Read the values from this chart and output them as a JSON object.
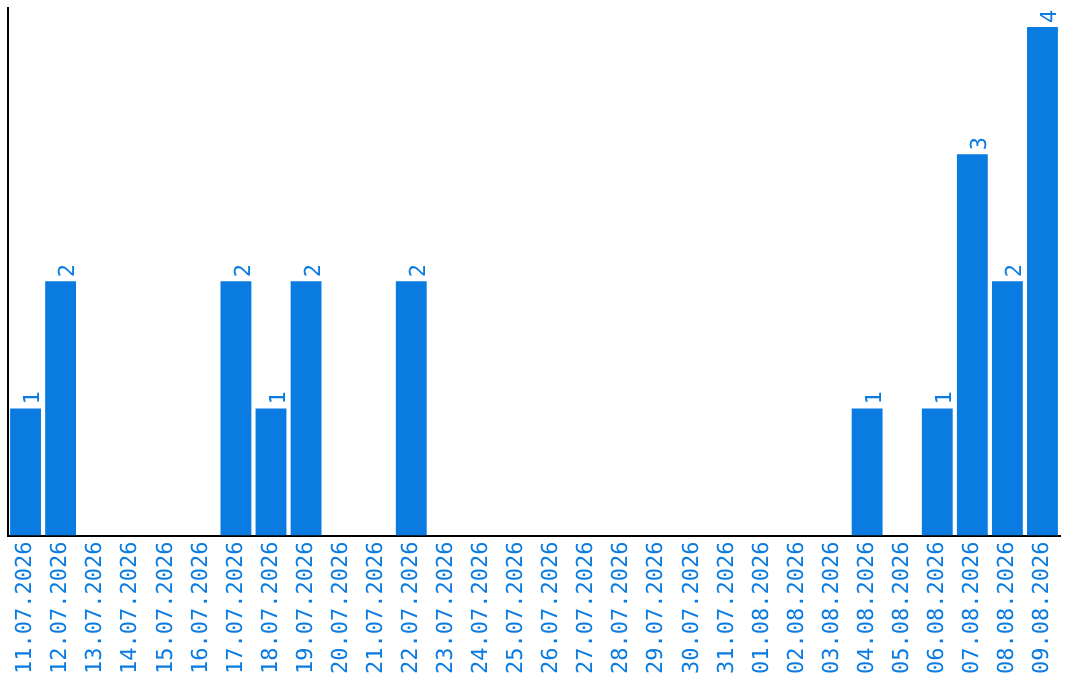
{
  "chart_data": {
    "type": "bar",
    "categories": [
      "11.07.2026",
      "12.07.2026",
      "13.07.2026",
      "14.07.2026",
      "15.07.2026",
      "16.07.2026",
      "17.07.2026",
      "18.07.2026",
      "19.07.2026",
      "20.07.2026",
      "21.07.2026",
      "22.07.2026",
      "23.07.2026",
      "24.07.2026",
      "25.07.2026",
      "26.07.2026",
      "27.07.2026",
      "28.07.2026",
      "29.07.2026",
      "30.07.2026",
      "31.07.2026",
      "01.08.2026",
      "02.08.2026",
      "03.08.2026",
      "04.08.2026",
      "05.08.2026",
      "06.08.2026",
      "07.08.2026",
      "08.08.2026",
      "09.08.2026"
    ],
    "values": [
      1,
      2,
      0,
      0,
      0,
      0,
      2,
      1,
      2,
      0,
      0,
      2,
      0,
      0,
      0,
      0,
      0,
      0,
      0,
      0,
      0,
      0,
      0,
      0,
      1,
      0,
      1,
      3,
      2,
      4
    ],
    "value_labels": [
      "1",
      "2",
      null,
      null,
      null,
      null,
      "2",
      "1",
      "2",
      null,
      null,
      "2",
      null,
      null,
      null,
      null,
      null,
      null,
      null,
      null,
      null,
      null,
      null,
      null,
      "1",
      null,
      "1",
      "3",
      "2",
      "4"
    ],
    "color": "#0a7be0",
    "ylim": [
      0,
      4.15
    ],
    "tick_labels": "x"
  }
}
